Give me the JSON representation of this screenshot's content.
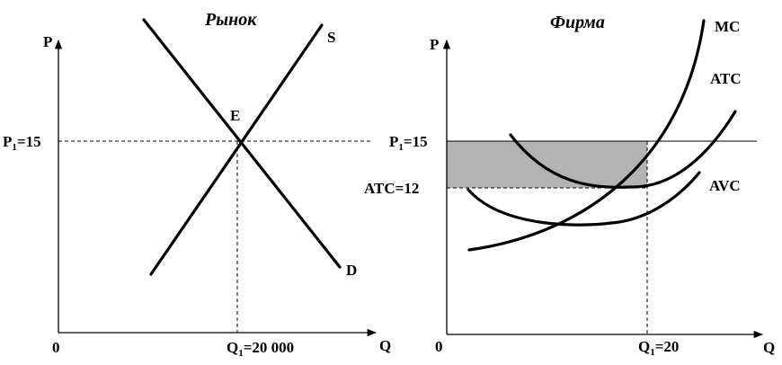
{
  "market": {
    "title": "Рынок",
    "axis_p": "P",
    "axis_q": "Q",
    "origin": "0",
    "supply_label": "S",
    "demand_label": "D",
    "equilibrium_label": "E",
    "price_label": "P",
    "price_sub": "1",
    "price_value": "=15",
    "qty_label": "Q",
    "qty_sub": "1",
    "qty_value": "=20 000"
  },
  "firm": {
    "title": "Фирма",
    "axis_p": "P",
    "axis_q": "Q",
    "origin": "0",
    "mc_label": "MC",
    "atc_label": "ATC",
    "avc_label": "AVC",
    "price_label": "P",
    "price_sub": "1",
    "price_value": "=15",
    "atc_value_label": "ATC=12",
    "qty_label": "Q",
    "qty_sub": "1",
    "qty_value": "=20",
    "profit_fill": "#b3b3b3"
  }
}
